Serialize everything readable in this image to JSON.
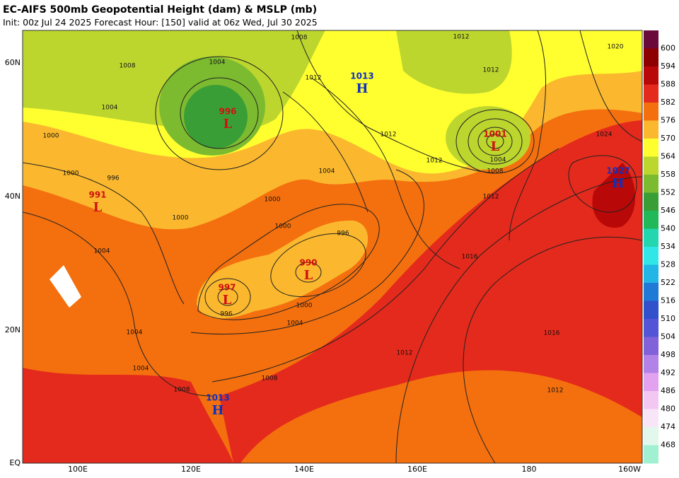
{
  "header": {
    "title": "EC-AIFS 500mb Geopotential Height (dam) & MSLP (mb)",
    "subtitle": "Init: 00z Jul 24 2025   Forecast Hour: [150]   valid at 06z Wed, Jul 30 2025"
  },
  "axes": {
    "lon_labels": [
      "100E",
      "120E",
      "140E",
      "160E",
      "180",
      "160W"
    ],
    "lat_labels": [
      "60N",
      "40N",
      "20N",
      "EQ"
    ]
  },
  "colorbar": {
    "colors": [
      "#6a0a3a",
      "#8e0000",
      "#b80808",
      "#e42a1c",
      "#f4700e",
      "#fbb82e",
      "#ffff30",
      "#bcd62e",
      "#7cbb30",
      "#3a9e36",
      "#20b858",
      "#22d6b0",
      "#30e6e6",
      "#22b6e6",
      "#1e7ad6",
      "#3050cc",
      "#5454d6",
      "#8262d8",
      "#b282e6",
      "#e2a2f0",
      "#f2c8f2",
      "#f8e6f8",
      "#e2f8ec",
      "#a2f0d2"
    ],
    "labels": [
      "600",
      "594",
      "588",
      "582",
      "576",
      "570",
      "564",
      "558",
      "552",
      "546",
      "540",
      "534",
      "528",
      "522",
      "516",
      "510",
      "504",
      "498",
      "492",
      "486",
      "480",
      "474",
      "468"
    ]
  },
  "pressure_centers": [
    {
      "symbol": "H",
      "value": "1013"
    },
    {
      "symbol": "L",
      "value": "996"
    },
    {
      "symbol": "L",
      "value": "1001"
    },
    {
      "symbol": "H",
      "value": "1027"
    },
    {
      "symbol": "L",
      "value": "991"
    },
    {
      "symbol": "L",
      "value": "990"
    },
    {
      "symbol": "L",
      "value": "997"
    },
    {
      "symbol": "H",
      "value": "1013"
    }
  ],
  "contour_labels": [
    "1008",
    "1004",
    "1004",
    "1000",
    "1008",
    "1012",
    "1012",
    "1012",
    "1012",
    "1012",
    "1008",
    "1004",
    "1024",
    "1012",
    "1016",
    "1016",
    "1012",
    "1012",
    "1008",
    "1004",
    "1000",
    "996",
    "996",
    "1000",
    "1000",
    "1004",
    "1004",
    "1004",
    "1008",
    "1004",
    "1000",
    "996",
    "1000",
    "1020"
  ]
}
